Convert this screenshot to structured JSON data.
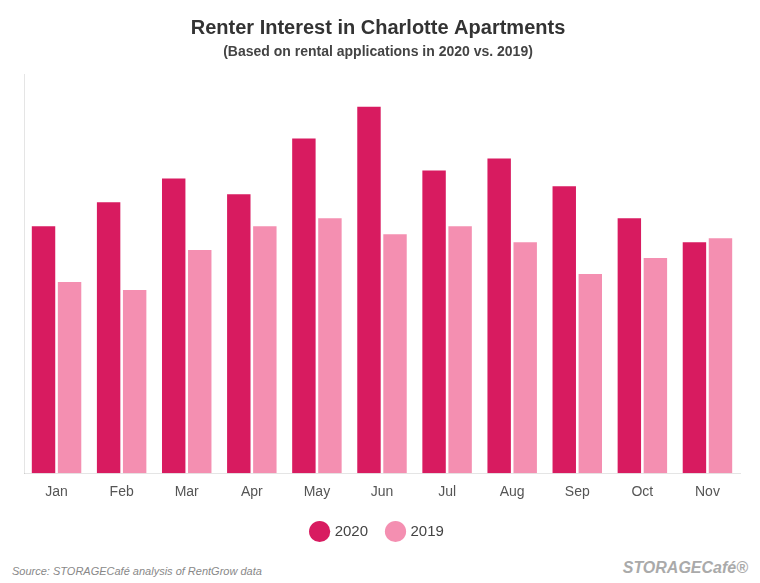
{
  "chart_data": {
    "type": "bar",
    "title": "Renter Interest in Charlotte Apartments",
    "subtitle": "(Based on rental applications in 2020 vs. 2019)",
    "categories": [
      "Jan",
      "Feb",
      "Mar",
      "Apr",
      "May",
      "Jun",
      "Jul",
      "Aug",
      "Sep",
      "Oct",
      "Nov"
    ],
    "series": [
      {
        "name": "2020",
        "color": "#D81B60",
        "values": [
          62,
          68,
          74,
          70,
          84,
          92,
          76,
          79,
          72,
          64,
          58
        ]
      },
      {
        "name": "2019",
        "color": "#F48FB1",
        "values": [
          48,
          46,
          56,
          62,
          64,
          60,
          62,
          58,
          50,
          54,
          59
        ]
      }
    ],
    "ylim": [
      0,
      100
    ],
    "yticks": [],
    "grid": false,
    "legend": "bottom",
    "tick_labels": "x",
    "annotations": [
      "Source: STORAGECafé analysis of RentGrow data",
      "STORAGECafé®"
    ]
  }
}
